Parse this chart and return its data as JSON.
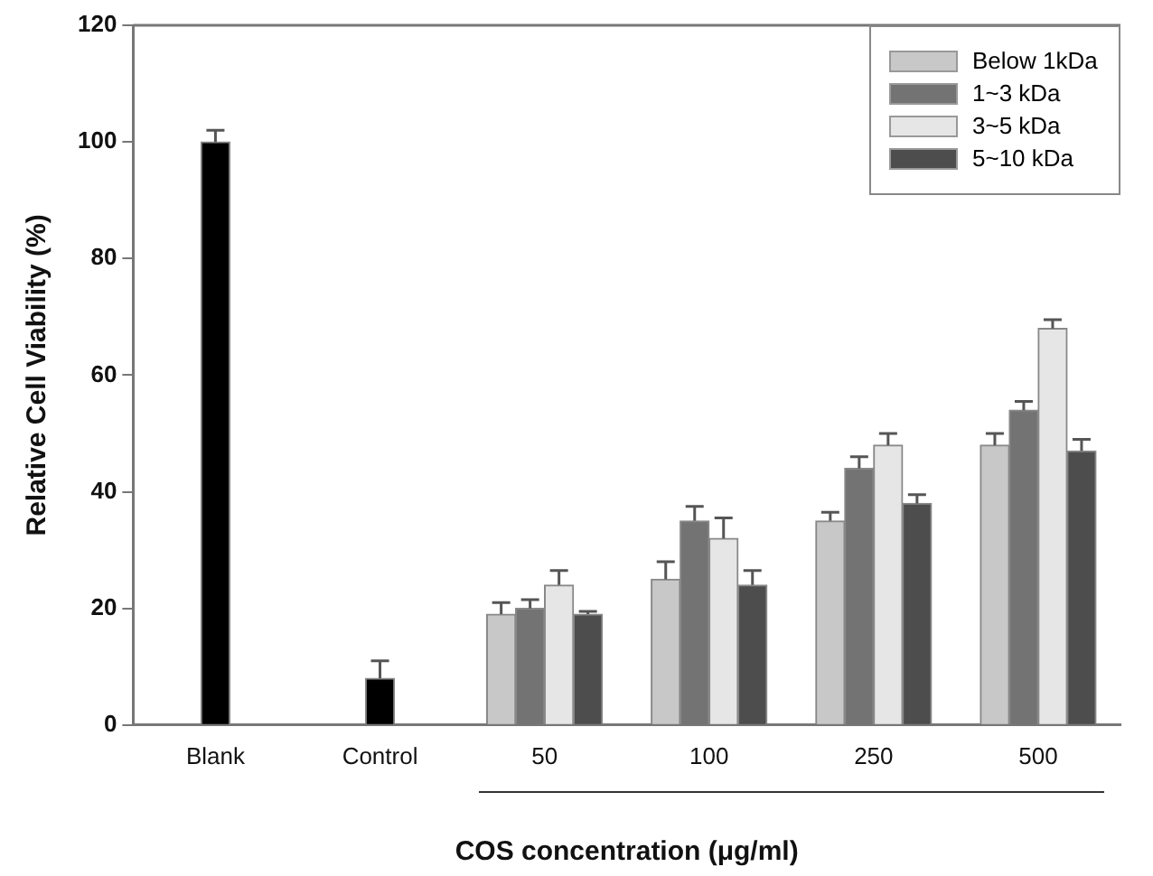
{
  "chart_data": {
    "type": "bar",
    "xlabel": "COS concentration (μg/ml)",
    "ylabel": "Relative Cell Viability (%)",
    "categories": [
      "Blank",
      "Control",
      "50",
      "100",
      "250",
      "500"
    ],
    "ylim": [
      0,
      120
    ],
    "yticks": [
      0,
      20,
      40,
      60,
      80,
      100,
      120
    ],
    "grid": false,
    "legend": "top right",
    "series": [
      {
        "color": "#000000",
        "values": [
          100,
          8,
          null,
          null,
          null,
          null
        ],
        "errors": [
          2,
          3,
          null,
          null,
          null,
          null
        ]
      },
      {
        "name": "Below 1kDa",
        "color": "#c8c8c8",
        "values": [
          null,
          null,
          19,
          25,
          35,
          48
        ],
        "errors": [
          null,
          null,
          2,
          3,
          1.5,
          2
        ]
      },
      {
        "name": "1~3 kDa",
        "color": "#737373",
        "values": [
          null,
          null,
          20,
          35,
          44,
          54
        ],
        "errors": [
          null,
          null,
          1.5,
          2.5,
          2,
          1.5
        ]
      },
      {
        "name": "3~5 kDa",
        "color": "#e6e6e6",
        "values": [
          null,
          null,
          24,
          32,
          48,
          68
        ],
        "errors": [
          null,
          null,
          2.5,
          3.5,
          2,
          1.5
        ]
      },
      {
        "name": "5~10 kDa",
        "color": "#4d4d4d",
        "values": [
          null,
          null,
          19,
          24,
          38,
          47
        ],
        "errors": [
          null,
          null,
          0.5,
          2.5,
          1.5,
          2
        ]
      }
    ]
  }
}
